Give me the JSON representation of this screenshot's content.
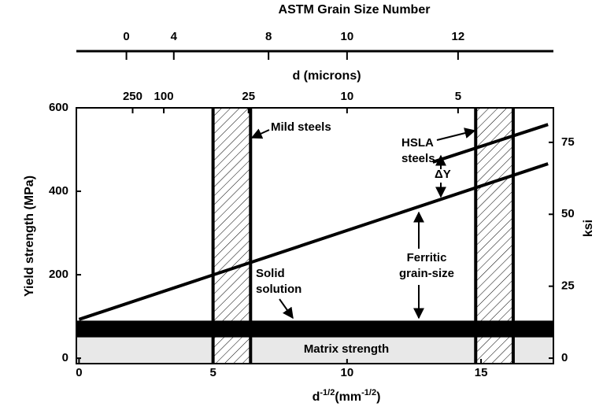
{
  "chart_data": {
    "type": "line",
    "xlabel": [
      "d",
      "-1/2",
      "(mm",
      "-1/2",
      ")"
    ],
    "ylabel": "Yield strength (MPa)",
    "y2label": "ksi",
    "xlim": [
      -0.1,
      17.7
    ],
    "ylim": [
      -13,
      600
    ],
    "xticks": [
      0,
      5,
      10,
      15
    ],
    "yticks": [
      0,
      200,
      400,
      600
    ],
    "y2lim": [
      -1.9,
      87
    ],
    "y2ticks": [
      0,
      25,
      50,
      75
    ],
    "top_axes": [
      {
        "title": "d (microns)",
        "ticks": [
          250,
          100,
          25,
          10,
          5
        ]
      },
      {
        "title": "ASTM Grain Size Number",
        "ticks": [
          0,
          4,
          8,
          10,
          12
        ]
      }
    ],
    "series": [
      {
        "x": [
          0,
          17.5
        ],
        "values": [
          93,
          466
        ],
        "color": "#000000"
      },
      {
        "x": [
          13.2,
          17.5
        ],
        "values": [
          470,
          560
        ],
        "color": "#000000"
      }
    ],
    "solid_solution_band": [
      50,
      90
    ],
    "matrix_strength_level": 50,
    "hatched_bands": [
      [
        5,
        6.4
      ],
      [
        14.8,
        16.2
      ]
    ],
    "annotations": {
      "mild": "Mild steels",
      "hsla": [
        "HSLA",
        "steels"
      ],
      "delta": "ΔY",
      "ferritic": [
        "Ferritic",
        "grain-size"
      ],
      "solid": [
        "Solid",
        "solution"
      ],
      "matrix": "Matrix strength"
    }
  }
}
